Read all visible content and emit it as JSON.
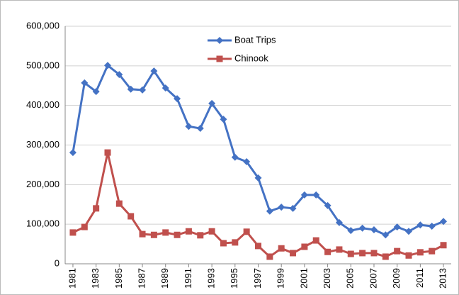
{
  "chart_data": {
    "type": "line",
    "x": [
      1981,
      1982,
      1983,
      1984,
      1985,
      1986,
      1987,
      1988,
      1989,
      1990,
      1991,
      1992,
      1993,
      1994,
      1995,
      1996,
      1997,
      1998,
      1999,
      2000,
      2001,
      2002,
      2003,
      2004,
      2005,
      2006,
      2007,
      2008,
      2009,
      2010,
      2011,
      2012,
      2013
    ],
    "series": [
      {
        "name": "Boat Trips",
        "color": "#4472c4",
        "marker": "diamond",
        "values": [
          281000,
          457000,
          435000,
          501000,
          478000,
          441000,
          439000,
          487000,
          444000,
          417000,
          347000,
          342000,
          405000,
          365000,
          269000,
          258000,
          217000,
          133000,
          143000,
          140000,
          174000,
          174000,
          147000,
          104000,
          84000,
          90000,
          86000,
          73000,
          93000,
          82000,
          98000,
          95000,
          107000
        ]
      },
      {
        "name": "Chinook",
        "color": "#c0504d",
        "marker": "square",
        "values": [
          79000,
          93000,
          140000,
          281000,
          152000,
          120000,
          75000,
          73000,
          79000,
          73000,
          82000,
          72000,
          82000,
          52000,
          54000,
          81000,
          45000,
          18000,
          39000,
          27000,
          43000,
          59000,
          30000,
          36000,
          25000,
          27000,
          27000,
          18000,
          32000,
          21000,
          29000,
          32000,
          47000
        ]
      }
    ],
    "xlim": [
      1980.33,
      2013.67
    ],
    "xticks": [
      1981,
      1983,
      1985,
      1987,
      1989,
      1991,
      1993,
      1995,
      1997,
      1999,
      2001,
      2003,
      2005,
      2007,
      2009,
      2011,
      2013
    ],
    "ylim": [
      0,
      600000
    ],
    "yticks": [
      0,
      {
        "value": 100000,
        "label": "100,000"
      },
      {
        "value": 200000,
        "label": "200,000"
      },
      {
        "value": 300000,
        "label": "300,000"
      },
      {
        "value": 400000,
        "label": "400,000"
      },
      {
        "value": 500000,
        "label": "500,000"
      },
      {
        "value": 600000,
        "label": "600,000"
      }
    ],
    "grid": true,
    "legend": "top"
  }
}
